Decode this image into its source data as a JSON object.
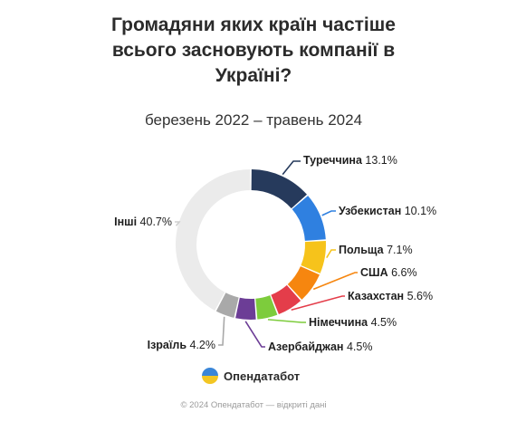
{
  "header": {
    "title_lines": [
      "Громадяни яких країн частіше",
      "всього засновують компанії в",
      "Україні?"
    ],
    "subtitle": "березень 2022 – травень 2024"
  },
  "chart_data": {
    "type": "pie",
    "donut": true,
    "title": "Громадяни яких країн частіше всього засновують компанії в Україні?",
    "subtitle": "березень 2022 – травень 2024",
    "unit": "%",
    "slices": [
      {
        "label": "Туреччина",
        "value": 13.1,
        "display": "13.1%",
        "color": "#263a5c"
      },
      {
        "label": "Узбекистан",
        "value": 10.1,
        "display": "10.1%",
        "color": "#2f80e0"
      },
      {
        "label": "Польща",
        "value": 7.1,
        "display": "7.1%",
        "color": "#f6c31b"
      },
      {
        "label": "США",
        "value": 6.6,
        "display": "6.6%",
        "color": "#f6860f"
      },
      {
        "label": "Казахстан",
        "value": 5.6,
        "display": "5.6%",
        "color": "#e43d4a"
      },
      {
        "label": "Німеччина",
        "value": 4.5,
        "display": "4.5%",
        "color": "#7dcc3c"
      },
      {
        "label": "Азербайджан",
        "value": 4.5,
        "display": "4.5%",
        "color": "#6c3d96"
      },
      {
        "label": "Ізраїль",
        "value": 4.2,
        "display": "4.2%",
        "color": "#a9a9a9"
      },
      {
        "label": "Інші",
        "value": 40.7,
        "display": "40.7%",
        "color": "#ebebeb"
      }
    ]
  },
  "brand": {
    "name": "Опендатабот",
    "icon": "opendatabot-logo-icon"
  },
  "footer": {
    "text": "© 2024 Опендатабот — відкриті дані"
  }
}
